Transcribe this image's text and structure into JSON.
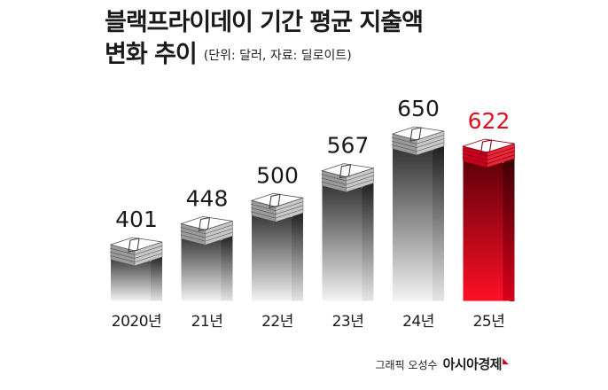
{
  "title": {
    "line1": "블랙프라이데이 기간 평균 지출액",
    "line2": "변화 추이",
    "unit_source": "(단위: 달러, 자료: 딜로이트)"
  },
  "credit": {
    "graphic_by": "그래픽 오성수",
    "brand": "아시아경제",
    "brand_mark": "◣"
  },
  "colors": {
    "default_bar": "#4a4a4a",
    "highlight_bar": "#c8001e",
    "default_label": "#1a1a1a",
    "highlight_label": "#e0101e"
  },
  "chart_data": {
    "type": "bar",
    "categories": [
      "2020년",
      "21년",
      "22년",
      "23년",
      "24년",
      "25년"
    ],
    "values": [
      401,
      448,
      500,
      567,
      650,
      622
    ],
    "data_labels": [
      "401",
      "448",
      "500",
      "567",
      "650",
      "622"
    ],
    "highlight": "25년",
    "title": "블랙프라이데이 기간 평균 지출액 변화 추이",
    "xlabel": "",
    "ylabel": "",
    "unit": "달러",
    "source": "딜로이트",
    "grid": false,
    "legend": "none",
    "bar_style": "stack of banknotes on gradient column"
  }
}
